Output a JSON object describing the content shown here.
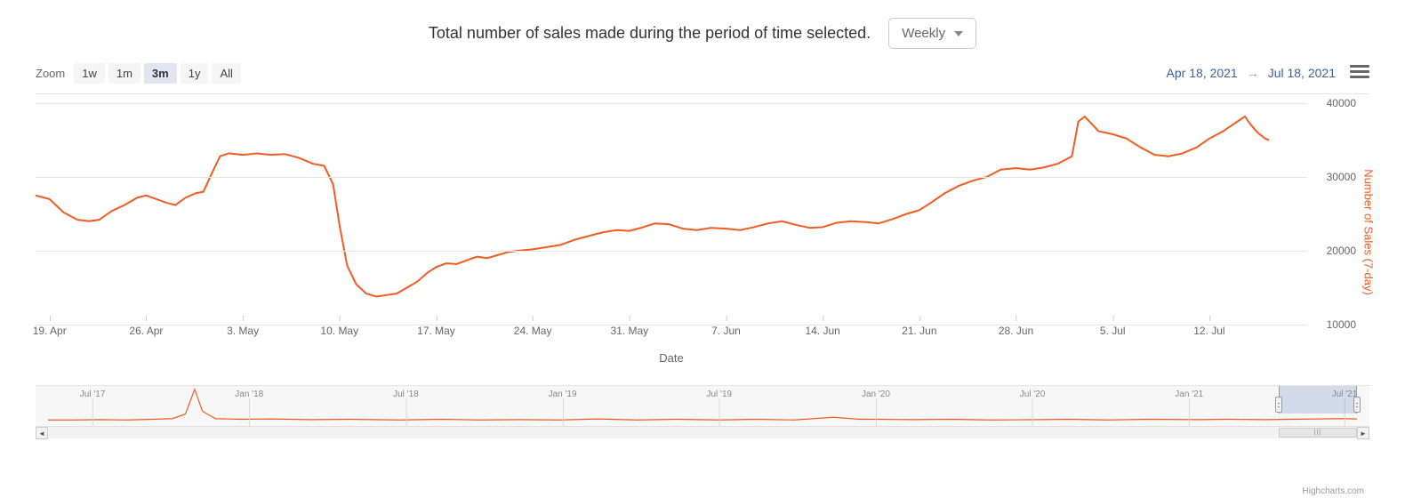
{
  "header": {
    "description": "Total number of sales made during the period of time selected.",
    "dropdown_label": "Weekly"
  },
  "zoom": {
    "label": "Zoom",
    "buttons": [
      {
        "label": "1w",
        "active": false
      },
      {
        "label": "1m",
        "active": false
      },
      {
        "label": "3m",
        "active": true
      },
      {
        "label": "1y",
        "active": false
      },
      {
        "label": "All",
        "active": false
      }
    ]
  },
  "date_range": {
    "from": "Apr 18, 2021",
    "to": "Jul 18, 2021",
    "separator": "→"
  },
  "chart": {
    "type": "line",
    "line_color": "#f15c22",
    "line_width": 2,
    "background_color": "#ffffff",
    "grid_color": "#e6e6e6",
    "y_axis": {
      "title": "Number of Sales (7-day)",
      "title_color": "#f15c22",
      "ticks": [
        10000,
        20000,
        30000,
        40000
      ],
      "min": 10000,
      "max": 40000,
      "tick_labels": [
        "10000",
        "20000",
        "30000",
        "40000"
      ]
    },
    "x_axis": {
      "title": "Date",
      "tick_labels": [
        "19. Apr",
        "26. Apr",
        "3. May",
        "10. May",
        "17. May",
        "24. May",
        "31. May",
        "7. Jun",
        "14. Jun",
        "21. Jun",
        "28. Jun",
        "5. Jul",
        "12. Jul"
      ],
      "tick_positions_pct": [
        1.1,
        8.7,
        16.3,
        23.9,
        31.5,
        39.1,
        46.7,
        54.3,
        61.9,
        69.5,
        77.1,
        84.7,
        92.3
      ]
    },
    "series": {
      "name": "Number of Sales",
      "points": [
        [
          0.0,
          27500
        ],
        [
          1.1,
          27000
        ],
        [
          2.2,
          25200
        ],
        [
          3.3,
          24200
        ],
        [
          4.2,
          24000
        ],
        [
          5.0,
          24200
        ],
        [
          6.0,
          25400
        ],
        [
          7.0,
          26200
        ],
        [
          8.0,
          27200
        ],
        [
          8.7,
          27500
        ],
        [
          9.5,
          27000
        ],
        [
          10.3,
          26500
        ],
        [
          11.0,
          26200
        ],
        [
          11.8,
          27200
        ],
        [
          12.6,
          27800
        ],
        [
          13.2,
          28000
        ],
        [
          14.0,
          31000
        ],
        [
          14.5,
          32800
        ],
        [
          15.2,
          33200
        ],
        [
          16.3,
          33000
        ],
        [
          17.4,
          33200
        ],
        [
          18.5,
          33000
        ],
        [
          19.6,
          33100
        ],
        [
          20.7,
          32600
        ],
        [
          21.8,
          31800
        ],
        [
          22.7,
          31500
        ],
        [
          23.4,
          29000
        ],
        [
          23.9,
          23500
        ],
        [
          24.5,
          18000
        ],
        [
          25.2,
          15500
        ],
        [
          26.0,
          14200
        ],
        [
          26.8,
          13800
        ],
        [
          27.6,
          14000
        ],
        [
          28.4,
          14200
        ],
        [
          29.2,
          15000
        ],
        [
          30.0,
          15800
        ],
        [
          30.8,
          17000
        ],
        [
          31.5,
          17800
        ],
        [
          32.3,
          18300
        ],
        [
          33.1,
          18200
        ],
        [
          33.9,
          18700
        ],
        [
          34.7,
          19200
        ],
        [
          35.5,
          19000
        ],
        [
          36.3,
          19400
        ],
        [
          37.1,
          19800
        ],
        [
          37.9,
          20000
        ],
        [
          39.1,
          20200
        ],
        [
          40.2,
          20500
        ],
        [
          41.3,
          20800
        ],
        [
          42.4,
          21500
        ],
        [
          43.5,
          22000
        ],
        [
          44.6,
          22500
        ],
        [
          45.7,
          22800
        ],
        [
          46.7,
          22700
        ],
        [
          47.6,
          23100
        ],
        [
          48.7,
          23700
        ],
        [
          49.8,
          23600
        ],
        [
          50.9,
          23000
        ],
        [
          52.0,
          22800
        ],
        [
          53.1,
          23100
        ],
        [
          54.3,
          23000
        ],
        [
          55.4,
          22800
        ],
        [
          56.5,
          23200
        ],
        [
          57.6,
          23700
        ],
        [
          58.7,
          24000
        ],
        [
          59.8,
          23500
        ],
        [
          60.9,
          23100
        ],
        [
          61.9,
          23200
        ],
        [
          63.0,
          23800
        ],
        [
          64.1,
          24000
        ],
        [
          65.2,
          23900
        ],
        [
          66.3,
          23700
        ],
        [
          67.4,
          24300
        ],
        [
          68.5,
          25000
        ],
        [
          69.5,
          25500
        ],
        [
          70.4,
          26500
        ],
        [
          71.5,
          27800
        ],
        [
          72.6,
          28800
        ],
        [
          73.7,
          29500
        ],
        [
          74.8,
          30000
        ],
        [
          75.9,
          31000
        ],
        [
          77.1,
          31200
        ],
        [
          78.2,
          31000
        ],
        [
          79.3,
          31300
        ],
        [
          80.4,
          31800
        ],
        [
          81.5,
          32800
        ],
        [
          82.0,
          37500
        ],
        [
          82.5,
          38200
        ],
        [
          83.6,
          36200
        ],
        [
          84.7,
          35800
        ],
        [
          85.8,
          35200
        ],
        [
          86.9,
          34000
        ],
        [
          88.0,
          33000
        ],
        [
          89.1,
          32800
        ],
        [
          90.2,
          33200
        ],
        [
          91.3,
          34000
        ],
        [
          92.3,
          35200
        ],
        [
          93.4,
          36200
        ],
        [
          94.5,
          37500
        ],
        [
          95.1,
          38200
        ],
        [
          95.6,
          37000
        ],
        [
          96.1,
          36000
        ],
        [
          96.7,
          35200
        ],
        [
          97.0,
          35000
        ]
      ]
    }
  },
  "navigator": {
    "background_color": "#f7f7f7",
    "line_color": "#f15c22",
    "tick_labels": [
      "Jul '17",
      "Jan '18",
      "Jul '18",
      "Jan '19",
      "Jul '19",
      "Jan '20",
      "Jul '20",
      "Jan '21",
      "Jul '21"
    ],
    "tick_positions_pct": [
      2.5,
      14.7,
      26.9,
      39.1,
      51.3,
      63.5,
      75.7,
      87.9,
      100.0
    ],
    "selection_start_pct": 94.0,
    "selection_end_pct": 100.0,
    "series_points": [
      [
        0,
        9
      ],
      [
        2,
        9
      ],
      [
        4,
        9.5
      ],
      [
        6,
        9
      ],
      [
        8,
        10
      ],
      [
        9.5,
        11
      ],
      [
        10.5,
        18
      ],
      [
        11.2,
        55
      ],
      [
        11.8,
        22
      ],
      [
        12.8,
        11
      ],
      [
        14.7,
        10
      ],
      [
        17,
        10.5
      ],
      [
        20,
        9.5
      ],
      [
        23,
        10
      ],
      [
        26.9,
        9
      ],
      [
        30,
        10
      ],
      [
        33,
        9
      ],
      [
        36,
        9.5
      ],
      [
        39.1,
        9
      ],
      [
        42,
        10.5
      ],
      [
        45,
        9
      ],
      [
        48,
        10
      ],
      [
        51.3,
        9
      ],
      [
        54,
        10
      ],
      [
        57,
        9
      ],
      [
        60,
        13
      ],
      [
        62,
        10
      ],
      [
        63.5,
        10
      ],
      [
        66,
        9.5
      ],
      [
        69,
        10
      ],
      [
        72,
        9
      ],
      [
        75.7,
        9.5
      ],
      [
        78,
        10
      ],
      [
        81,
        9
      ],
      [
        84,
        10
      ],
      [
        87.9,
        9.5
      ],
      [
        90,
        10
      ],
      [
        93,
        9.5
      ],
      [
        95,
        10
      ],
      [
        97,
        10.5
      ],
      [
        99,
        11
      ],
      [
        100,
        10.5
      ]
    ]
  },
  "credit": "Highcharts.com",
  "colors": {
    "text": "#666666",
    "date_text": "#3e5f9c",
    "border": "#cccccc"
  }
}
